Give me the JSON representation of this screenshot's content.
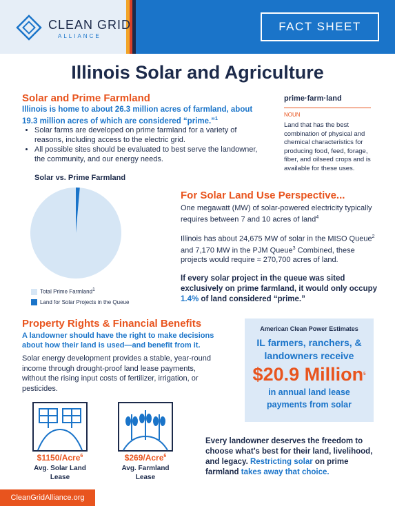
{
  "header": {
    "logo_line1": "CLEAN GRID",
    "logo_line2": "ALLIANCE",
    "badge": "FACT SHEET"
  },
  "title": "Illinois Solar and Agriculture",
  "farmland": {
    "heading": "Solar and Prime Farmland",
    "lead": "Illinois is home to about 26.3 million acres of farmland, about 19.3 million acres of which are considered “prime.”",
    "lead_note": "1",
    "bullets": [
      "Solar farms are developed on prime farmland for a variety of reasons, including access to the electric grid.",
      "All possible sites should be evaluated to best serve the landowner, the community, and our energy needs."
    ]
  },
  "definition": {
    "term": "prime·farm·land",
    "pos": "NOUN",
    "text": "Land that has the best combination of physical and chemical characteristics for producing food, feed, forage, fiber, and oilseed crops and is available for these uses."
  },
  "chart_data": {
    "type": "pie",
    "title": "Solar vs. Prime Farmland",
    "categories": [
      "Total Prime Farmland",
      "Land for Solar Projects in the Queue"
    ],
    "values": [
      98.6,
      1.4
    ],
    "colors": [
      "#d6e6f5",
      "#1a74c9"
    ],
    "legend_note": "1"
  },
  "perspective": {
    "heading": "For Solar Land Use Perspective...",
    "p1": "One megawatt (MW) of solar-powered electricity typically requires between 7 and 10 acres of land",
    "p1_note": "4",
    "p2": [
      "Illinois has about 24,675 MW of solar in the MISO Queue",
      "2",
      " and 7,170 MW in the PJM Queue",
      "3",
      " Combined, these projects would require ≈ 270,700 acres of land."
    ],
    "p3": [
      "If every solar project in the queue was sited exclusively on prime farmland, it would only occupy ",
      "1.4%",
      " of land considered “prime.”"
    ]
  },
  "property": {
    "heading": "Property Rights & Financial Benefits",
    "lead": "A landowner should have the right to make decisions about how their land is used—and benefit from it.",
    "body": "Solar energy development provides a stable, year-round income through drought-proof land lease payments, without the rising input costs of fertilizer, irrigation, or pesticides.",
    "stats": [
      {
        "value": "$1150/Acre",
        "note": "6",
        "label": "Avg. Solar Land Lease"
      },
      {
        "value": "$269/Acre",
        "note": "6",
        "label": "Avg. Farmland Lease"
      }
    ]
  },
  "callout": {
    "source": "American Clean Power Estimates",
    "line1": "IL farmers, ranchers, & landowners receive",
    "amount": "$20.9 Million",
    "amount_note": "5",
    "line2": "in annual land lease payments from solar"
  },
  "closing": [
    "Every landowner deserves the freedom to choose what’s best for their land, livelihood, and legacy. ",
    "Restricting solar",
    " on prime farmland ",
    "takes away that choice."
  ],
  "footer": "CleanGridAlliance.org"
}
